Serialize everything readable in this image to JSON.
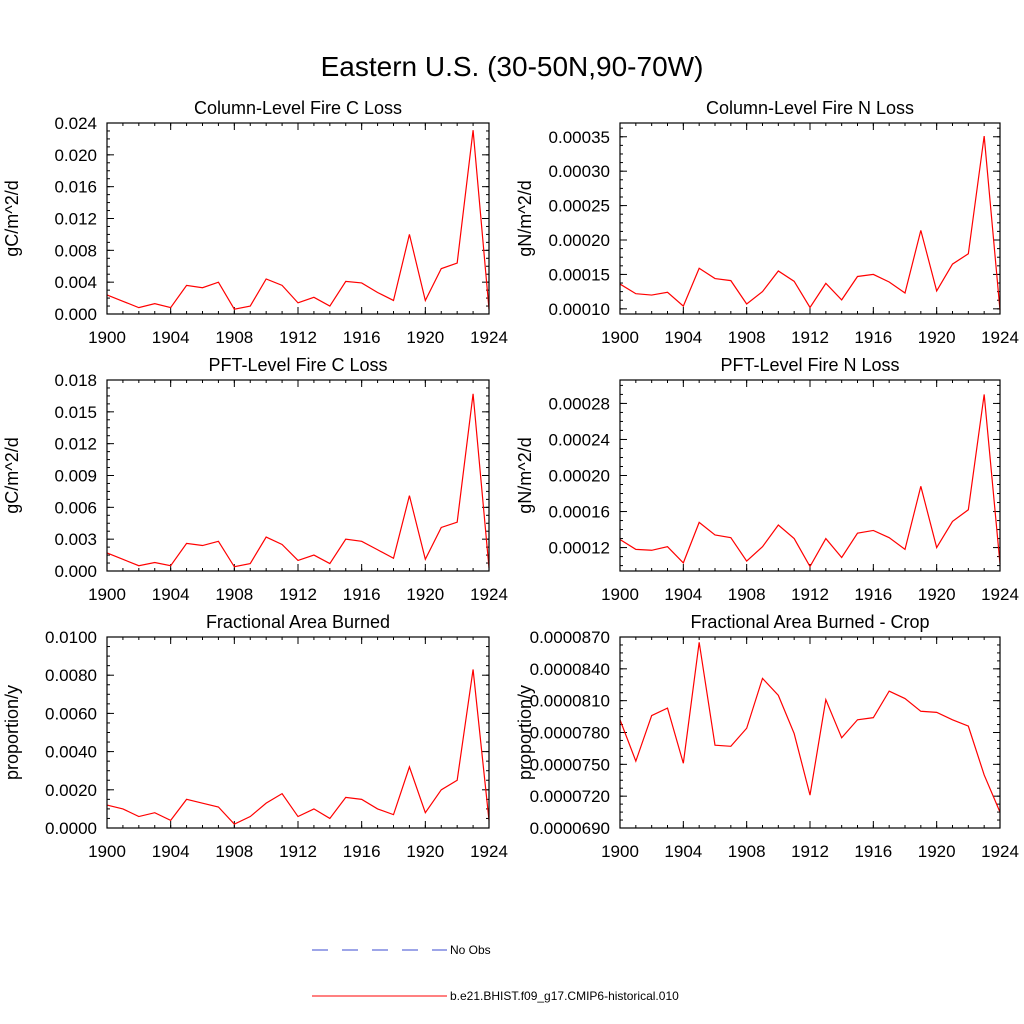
{
  "figure": {
    "title": "Eastern U.S. (30-50N,90-70W)"
  },
  "legend": [
    {
      "label": "No Obs",
      "color": "#3b4bd0",
      "style": "dashed"
    },
    {
      "label": "b.e21.BHIST.f09_g17.CMIP6-historical.010",
      "color": "#ff0000",
      "style": "solid"
    }
  ],
  "chart_data": [
    {
      "type": "line",
      "title": "Column-Level Fire C Loss",
      "ylabel": "gC/m^2/d",
      "xlabel": "",
      "xlim": [
        1900,
        1924
      ],
      "ylim": [
        0.0,
        0.024
      ],
      "x_ticks": [
        "1900",
        "1904",
        "1908",
        "1912",
        "1916",
        "1920",
        "1924"
      ],
      "y_ticks": [
        "0.000",
        "0.004",
        "0.008",
        "0.012",
        "0.016",
        "0.020",
        "0.024"
      ],
      "color": "#ff0000",
      "x": [
        1900,
        1901,
        1902,
        1903,
        1904,
        1905,
        1906,
        1907,
        1908,
        1909,
        1910,
        1911,
        1912,
        1913,
        1914,
        1915,
        1916,
        1917,
        1918,
        1919,
        1920,
        1921,
        1922,
        1923,
        1924
      ],
      "values": [
        0.0024,
        0.0016,
        0.0008,
        0.0013,
        0.0008,
        0.0036,
        0.0033,
        0.004,
        0.0006,
        0.001,
        0.0044,
        0.0036,
        0.0014,
        0.0021,
        0.001,
        0.0041,
        0.0039,
        0.0027,
        0.0017,
        0.01,
        0.0017,
        0.0057,
        0.0064,
        0.0231,
        0.0006
      ]
    },
    {
      "type": "line",
      "title": "Column-Level Fire N Loss",
      "ylabel": "gN/m^2/d",
      "xlabel": "",
      "xlim": [
        1900,
        1924
      ],
      "ylim": [
        9.25e-05,
        0.00037
      ],
      "x_ticks": [
        "1900",
        "1904",
        "1908",
        "1912",
        "1916",
        "1920",
        "1924"
      ],
      "y_ticks": [
        "0.00010",
        "0.00015",
        "0.00020",
        "0.00025",
        "0.00030",
        "0.00035"
      ],
      "color": "#ff0000",
      "x": [
        1900,
        1901,
        1902,
        1903,
        1904,
        1905,
        1906,
        1907,
        1908,
        1909,
        1910,
        1911,
        1912,
        1913,
        1914,
        1915,
        1916,
        1917,
        1918,
        1919,
        1920,
        1921,
        1922,
        1923,
        1924
      ],
      "values": [
        0.000136,
        0.000122,
        0.00012,
        0.000124,
        0.000104,
        0.000159,
        0.000144,
        0.000141,
        0.000107,
        0.000125,
        0.000155,
        0.00014,
        0.000102,
        0.000137,
        0.000113,
        0.000147,
        0.00015,
        0.000139,
        0.000123,
        0.000214,
        0.000126,
        0.000165,
        0.00018,
        0.000351,
        9.8e-05
      ]
    },
    {
      "type": "line",
      "title": "PFT-Level Fire C Loss",
      "ylabel": "gC/m^2/d",
      "xlabel": "",
      "xlim": [
        1900,
        1924
      ],
      "ylim": [
        0.0,
        0.018
      ],
      "x_ticks": [
        "1900",
        "1904",
        "1908",
        "1912",
        "1916",
        "1920",
        "1924"
      ],
      "y_ticks": [
        "0.000",
        "0.003",
        "0.006",
        "0.009",
        "0.012",
        "0.015",
        "0.018"
      ],
      "color": "#ff0000",
      "x": [
        1900,
        1901,
        1902,
        1903,
        1904,
        1905,
        1906,
        1907,
        1908,
        1909,
        1910,
        1911,
        1912,
        1913,
        1914,
        1915,
        1916,
        1917,
        1918,
        1919,
        1920,
        1921,
        1922,
        1923,
        1924
      ],
      "values": [
        0.0017,
        0.0011,
        0.0005,
        0.0008,
        0.0005,
        0.0026,
        0.0024,
        0.0028,
        0.0004,
        0.0007,
        0.0032,
        0.0025,
        0.001,
        0.0015,
        0.0007,
        0.003,
        0.0028,
        0.002,
        0.0012,
        0.0071,
        0.0011,
        0.0041,
        0.0046,
        0.0167,
        0.0003
      ]
    },
    {
      "type": "line",
      "title": "PFT-Level Fire N Loss",
      "ylabel": "gN/m^2/d",
      "xlabel": "",
      "xlim": [
        1900,
        1924
      ],
      "ylim": [
        9.4e-05,
        0.000306
      ],
      "x_ticks": [
        "1900",
        "1904",
        "1908",
        "1912",
        "1916",
        "1920",
        "1924"
      ],
      "y_ticks": [
        "0.00012",
        "0.00016",
        "0.00020",
        "0.00024",
        "0.00028"
      ],
      "color": "#ff0000",
      "x": [
        1900,
        1901,
        1902,
        1903,
        1904,
        1905,
        1906,
        1907,
        1908,
        1909,
        1910,
        1911,
        1912,
        1913,
        1914,
        1915,
        1916,
        1917,
        1918,
        1919,
        1920,
        1921,
        1922,
        1923,
        1924
      ],
      "values": [
        0.000129,
        0.000118,
        0.000117,
        0.000121,
        0.000103,
        0.000148,
        0.000134,
        0.000131,
        0.000105,
        0.000121,
        0.000145,
        0.00013,
        9.9e-05,
        0.00013,
        0.000109,
        0.000136,
        0.000139,
        0.000131,
        0.000118,
        0.000188,
        0.00012,
        0.000149,
        0.000162,
        0.00029,
        0.000102
      ]
    },
    {
      "type": "line",
      "title": "Fractional Area Burned",
      "ylabel": "proportion/y",
      "xlabel": "",
      "xlim": [
        1900,
        1924
      ],
      "ylim": [
        0.0,
        0.01
      ],
      "x_ticks": [
        "1900",
        "1904",
        "1908",
        "1912",
        "1916",
        "1920",
        "1924"
      ],
      "y_ticks": [
        "0.0000",
        "0.0020",
        "0.0040",
        "0.0060",
        "0.0080",
        "0.0100"
      ],
      "color": "#ff0000",
      "x": [
        1900,
        1901,
        1902,
        1903,
        1904,
        1905,
        1906,
        1907,
        1908,
        1909,
        1910,
        1911,
        1912,
        1913,
        1914,
        1915,
        1916,
        1917,
        1918,
        1919,
        1920,
        1921,
        1922,
        1923,
        1924
      ],
      "values": [
        0.0012,
        0.001,
        0.0006,
        0.0008,
        0.0004,
        0.0015,
        0.0013,
        0.0011,
        0.0002,
        0.0006,
        0.0013,
        0.0018,
        0.0006,
        0.001,
        0.0005,
        0.0016,
        0.0015,
        0.001,
        0.0007,
        0.0032,
        0.0008,
        0.002,
        0.0025,
        0.0083,
        0.0004
      ]
    },
    {
      "type": "line",
      "title": "Fractional Area Burned - Crop",
      "ylabel": "proportion/y",
      "xlabel": "",
      "xlim": [
        1900,
        1924
      ],
      "ylim": [
        6.9e-05,
        8.7e-05
      ],
      "x_ticks": [
        "1900",
        "1904",
        "1908",
        "1912",
        "1916",
        "1920",
        "1924"
      ],
      "y_ticks": [
        "0.0000690",
        "0.0000720",
        "0.0000750",
        "0.0000780",
        "0.0000810",
        "0.0000840",
        "0.0000870"
      ],
      "color": "#ff0000",
      "x": [
        1900,
        1901,
        1902,
        1903,
        1904,
        1905,
        1906,
        1907,
        1908,
        1909,
        1910,
        1911,
        1912,
        1913,
        1914,
        1915,
        1916,
        1917,
        1918,
        1919,
        1920,
        1921,
        1922,
        1923,
        1924
      ],
      "values": [
        7.92e-05,
        7.53e-05,
        7.96e-05,
        8.03e-05,
        7.51e-05,
        8.65e-05,
        7.68e-05,
        7.67e-05,
        7.84e-05,
        8.31e-05,
        8.15e-05,
        7.79e-05,
        7.21e-05,
        8.11e-05,
        7.75e-05,
        7.92e-05,
        7.94e-05,
        8.19e-05,
        8.12e-05,
        8e-05,
        7.99e-05,
        7.92e-05,
        7.86e-05,
        7.4e-05,
        7.05e-05
      ]
    }
  ]
}
